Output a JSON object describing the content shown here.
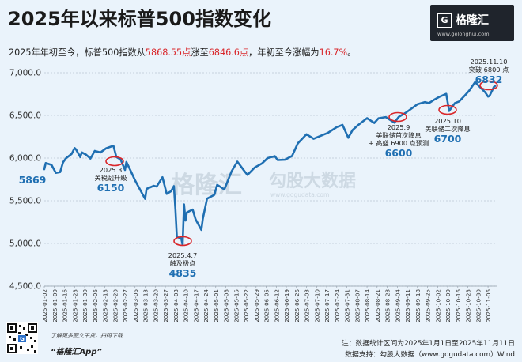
{
  "header": {
    "title": "2025年以来标普500指数变化",
    "subtitle_prefix": "2025年年初至今，标普500指数从",
    "subtitle_from": "5868.55点",
    "subtitle_mid": "涨至",
    "subtitle_to": "6846.6点",
    "subtitle_mid2": "，年初至今涨幅为",
    "subtitle_pct": "16.7%",
    "subtitle_suffix": "。"
  },
  "logo": {
    "icon": "gelonghui-logo-icon",
    "name": "格隆汇",
    "url": "www.gelonghui.com"
  },
  "watermark": {
    "left": "格隆汇",
    "right": "勾股大数据",
    "right_url": "www.gogudata.com"
  },
  "footer": {
    "qr_icon": "qr-code-icon",
    "tagline": "了解更多图文干货，扫码下载",
    "app_name": "“格隆汇App”",
    "note_range": "注：数据统计区间为2025年1月1日至2025年11月11日",
    "note_source": "数据支持：勾股大数据（www.gogudata.com）Wind"
  },
  "colors": {
    "line": "#1f6fb2",
    "highlight": "#d9262a",
    "axis_text": "#333333",
    "grid": "#b9c6d3"
  },
  "chart_data": {
    "type": "line",
    "title": "2025年以来标普500指数变化",
    "xlabel": "",
    "ylabel": "",
    "ylim": [
      4500,
      7000
    ],
    "grid": true,
    "y_ticks": [
      "4,500.0",
      "5,000.0",
      "5,500.0",
      "6,000.0",
      "6,500.0",
      "7,000.0"
    ],
    "y_tick_values": [
      4500,
      5000,
      5500,
      6000,
      6500,
      7000
    ],
    "x_ticks": [
      "2025-01-02",
      "2025-01-09",
      "2025-01-16",
      "2025-01-23",
      "2025-01-30",
      "2025-02-06",
      "2025-02-13",
      "2025-02-20",
      "2025-02-27",
      "2025-03-06",
      "2025-03-13",
      "2025-03-20",
      "2025-03-27",
      "2025-04-03",
      "2025-04-10",
      "2025-04-17",
      "2025-04-24",
      "2025-05-01",
      "2025-05-08",
      "2025-05-15",
      "2025-05-22",
      "2025-05-29",
      "2025-06-05",
      "2025-06-12",
      "2025-06-19",
      "2025-06-26",
      "2025-07-03",
      "2025-07-10",
      "2025-07-17",
      "2025-07-24",
      "2025-07-31",
      "2025-08-07",
      "2025-08-14",
      "2025-08-21",
      "2025-08-28",
      "2025-09-04",
      "2025-09-11",
      "2025-09-18",
      "2025-09-25",
      "2025-10-02",
      "2025-10-09",
      "2025-10-16",
      "2025-10-23",
      "2025-10-30",
      "2025-11-06"
    ],
    "x": [
      "2025-01-02",
      "2025-01-03",
      "2025-01-07",
      "2025-01-10",
      "2025-01-13",
      "2025-01-15",
      "2025-01-17",
      "2025-01-21",
      "2025-01-23",
      "2025-01-24",
      "2025-01-27",
      "2025-01-28",
      "2025-01-31",
      "2025-02-03",
      "2025-02-06",
      "2025-02-10",
      "2025-02-14",
      "2025-02-19",
      "2025-02-21",
      "2025-02-24",
      "2025-02-27",
      "2025-02-28",
      "2025-03-03",
      "2025-03-06",
      "2025-03-10",
      "2025-03-13",
      "2025-03-14",
      "2025-03-19",
      "2025-03-21",
      "2025-03-25",
      "2025-03-28",
      "2025-03-31",
      "2025-04-02",
      "2025-04-03",
      "2025-04-04",
      "2025-04-07",
      "2025-04-08",
      "2025-04-09",
      "2025-04-10",
      "2025-04-11",
      "2025-04-15",
      "2025-04-17",
      "2025-04-21",
      "2025-04-22",
      "2025-04-25",
      "2025-04-30",
      "2025-05-02",
      "2025-05-07",
      "2025-05-12",
      "2025-05-16",
      "2025-05-21",
      "2025-05-23",
      "2025-05-28",
      "2025-06-02",
      "2025-06-06",
      "2025-06-11",
      "2025-06-13",
      "2025-06-18",
      "2025-06-23",
      "2025-06-27",
      "2025-07-03",
      "2025-07-08",
      "2025-07-14",
      "2025-07-18",
      "2025-07-24",
      "2025-07-28",
      "2025-08-01",
      "2025-08-04",
      "2025-08-08",
      "2025-08-14",
      "2025-08-19",
      "2025-08-22",
      "2025-08-27",
      "2025-09-02",
      "2025-09-05",
      "2025-09-10",
      "2025-09-16",
      "2025-09-18",
      "2025-09-23",
      "2025-09-26",
      "2025-09-30",
      "2025-10-03",
      "2025-10-08",
      "2025-10-10",
      "2025-10-14",
      "2025-10-17",
      "2025-10-21",
      "2025-10-24",
      "2025-10-28",
      "2025-10-31",
      "2025-11-04",
      "2025-11-06",
      "2025-11-07",
      "2025-11-10",
      "2025-11-11"
    ],
    "series": [
      {
        "values": [
          5869,
          5942,
          5920,
          5827,
          5836,
          5950,
          5996,
          6049,
          6118,
          6101,
          6012,
          6067,
          6040,
          5994,
          6083,
          6066,
          6115,
          6144,
          6013,
          5983,
          5861,
          5954,
          5849,
          5738,
          5614,
          5522,
          5639,
          5675,
          5667,
          5776,
          5581,
          5612,
          5671,
          5396,
          5074,
          5062,
          4982,
          5457,
          5268,
          5363,
          5397,
          5282,
          5158,
          5287,
          5525,
          5569,
          5687,
          5632,
          5844,
          5958,
          5845,
          5803,
          5889,
          5936,
          6000,
          6022,
          5977,
          5981,
          6025,
          6173,
          6279,
          6226,
          6269,
          6297,
          6363,
          6389,
          6238,
          6329,
          6389,
          6468,
          6411,
          6467,
          6481,
          6415,
          6482,
          6532,
          6606,
          6631,
          6656,
          6644,
          6688,
          6716,
          6753,
          6552,
          6644,
          6664,
          6735,
          6792,
          6890,
          6840,
          6771,
          6720,
          6728,
          6832,
          6847
        ]
      }
    ],
    "annotations": [
      {
        "date": "2025-01-02",
        "value": 5869,
        "value_label": "5869"
      },
      {
        "date": "2025-02-19",
        "value": 6150,
        "label_line1": "2025.3",
        "label_line2": "关税战升级",
        "value_label": "6150"
      },
      {
        "date": "2025-04-08",
        "value": 4835,
        "label_line1": "2025.4.7",
        "label_line2": "触及极点",
        "value_label": "4835"
      },
      {
        "date": "2025-09-16",
        "value": 6600,
        "label_line1": "2025.9",
        "label_line2": "美联储首次降息",
        "label_line3": "+ 高盛 6900 点预测",
        "value_label": "6600"
      },
      {
        "date": "2025-10-14",
        "value": 6700,
        "label_line1": "2025.10",
        "label_line2": "美联储二次降息",
        "value_label": "6700"
      },
      {
        "date": "2025-11-10",
        "value": 6832,
        "label_line1": "2025.11.10",
        "label_line2": "突破 6800 点",
        "value_label": "6832"
      }
    ]
  }
}
